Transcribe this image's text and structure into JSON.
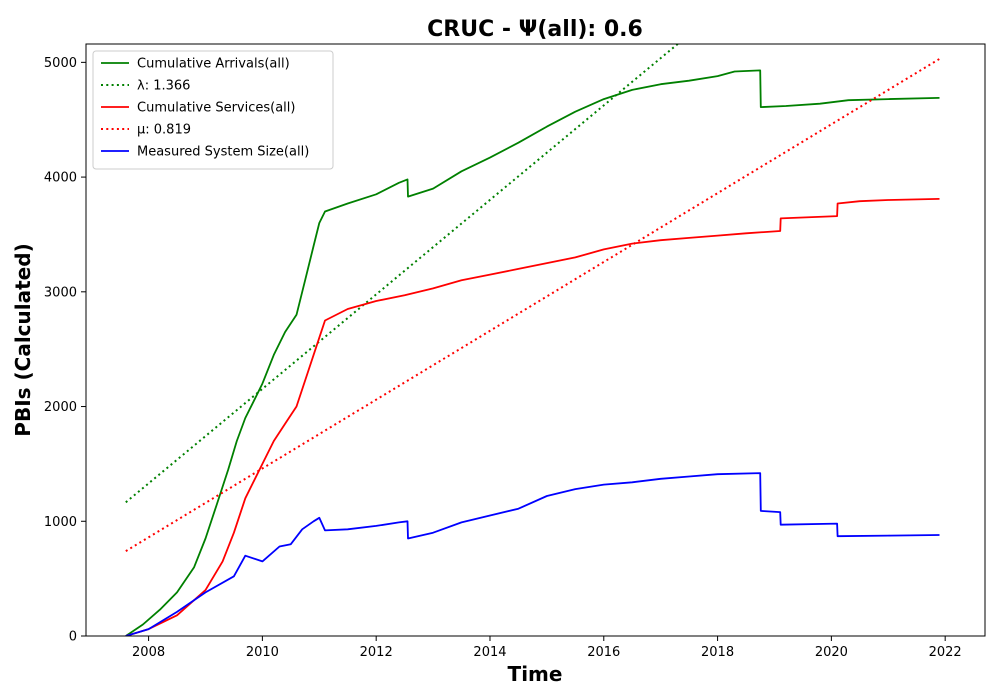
{
  "chart_data": {
    "type": "line",
    "title": "CRUC -  Ψ(all): 0.6",
    "xlabel": "Time",
    "ylabel": "PBIs (Calculated)",
    "xlim": [
      2006.9,
      2022.7
    ],
    "ylim": [
      0,
      5160
    ],
    "xticks": [
      2008,
      2010,
      2012,
      2014,
      2016,
      2018,
      2020,
      2022
    ],
    "yticks": [
      0,
      1000,
      2000,
      3000,
      4000,
      5000
    ],
    "grid": false,
    "legend_position": "top-left",
    "series": [
      {
        "name": "Cumulative Arrivals(all)",
        "color": "#008000",
        "style": "solid",
        "x": [
          2007.6,
          2007.9,
          2008.2,
          2008.5,
          2008.8,
          2009.0,
          2009.2,
          2009.4,
          2009.55,
          2009.7,
          2009.85,
          2010.0,
          2010.2,
          2010.4,
          2010.6,
          2010.75,
          2010.9,
          2011.0,
          2011.1,
          2011.5,
          2012.0,
          2012.4,
          2012.55,
          2012.56,
          2013.0,
          2013.5,
          2014.0,
          2014.5,
          2015.0,
          2015.5,
          2016.0,
          2016.5,
          2017.0,
          2017.5,
          2018.0,
          2018.3,
          2018.75,
          2018.76,
          2019.2,
          2019.8,
          2020.3,
          2021.0,
          2021.9
        ],
        "y": [
          0,
          100,
          230,
          380,
          600,
          850,
          1150,
          1450,
          1700,
          1900,
          2050,
          2200,
          2450,
          2650,
          2800,
          3100,
          3400,
          3600,
          3700,
          3770,
          3850,
          3950,
          3980,
          3830,
          3900,
          4050,
          4170,
          4300,
          4440,
          4570,
          4680,
          4760,
          4810,
          4840,
          4880,
          4920,
          4930,
          4610,
          4620,
          4640,
          4670,
          4680,
          4690
        ]
      },
      {
        "name": "λ: 1.366",
        "color": "#008000",
        "style": "dotted",
        "x": [
          2007.6,
          2017.3
        ],
        "y": [
          1165,
          5160
        ]
      },
      {
        "name": "Cumulative Services(all)",
        "color": "#ff0000",
        "style": "solid",
        "x": [
          2007.6,
          2008.0,
          2008.5,
          2009.0,
          2009.3,
          2009.5,
          2009.7,
          2010.0,
          2010.2,
          2010.4,
          2010.6,
          2010.8,
          2011.0,
          2011.1,
          2011.5,
          2012.0,
          2012.5,
          2013.0,
          2013.5,
          2014.0,
          2014.5,
          2015.0,
          2015.5,
          2016.0,
          2016.5,
          2017.0,
          2017.5,
          2018.0,
          2018.5,
          2019.1,
          2019.11,
          2020.1,
          2020.11,
          2020.5,
          2021.0,
          2021.9
        ],
        "y": [
          0,
          60,
          180,
          400,
          650,
          900,
          1200,
          1500,
          1700,
          1850,
          2000,
          2300,
          2600,
          2750,
          2850,
          2920,
          2970,
          3030,
          3100,
          3150,
          3200,
          3250,
          3300,
          3370,
          3420,
          3450,
          3470,
          3490,
          3510,
          3530,
          3640,
          3660,
          3770,
          3790,
          3800,
          3810
        ]
      },
      {
        "name": "μ: 0.819",
        "color": "#ff0000",
        "style": "dotted",
        "x": [
          2007.6,
          2021.9
        ],
        "y": [
          740,
          5030
        ]
      },
      {
        "name": "Measured System Size(all)",
        "color": "#0000ff",
        "style": "solid",
        "x": [
          2007.6,
          2008.0,
          2008.5,
          2009.0,
          2009.5,
          2009.7,
          2010.0,
          2010.3,
          2010.5,
          2010.7,
          2010.9,
          2011.0,
          2011.1,
          2011.5,
          2012.0,
          2012.4,
          2012.55,
          2012.56,
          2013.0,
          2013.5,
          2014.0,
          2014.5,
          2015.0,
          2015.5,
          2016.0,
          2016.5,
          2017.0,
          2017.5,
          2018.0,
          2018.75,
          2018.76,
          2019.1,
          2019.11,
          2020.1,
          2020.11,
          2021.0,
          2021.9
        ],
        "y": [
          0,
          60,
          210,
          380,
          520,
          700,
          650,
          780,
          800,
          930,
          1000,
          1030,
          920,
          930,
          960,
          990,
          1000,
          850,
          900,
          990,
          1050,
          1110,
          1220,
          1280,
          1320,
          1340,
          1370,
          1390,
          1410,
          1420,
          1090,
          1080,
          970,
          980,
          870,
          875,
          880
        ]
      }
    ]
  }
}
